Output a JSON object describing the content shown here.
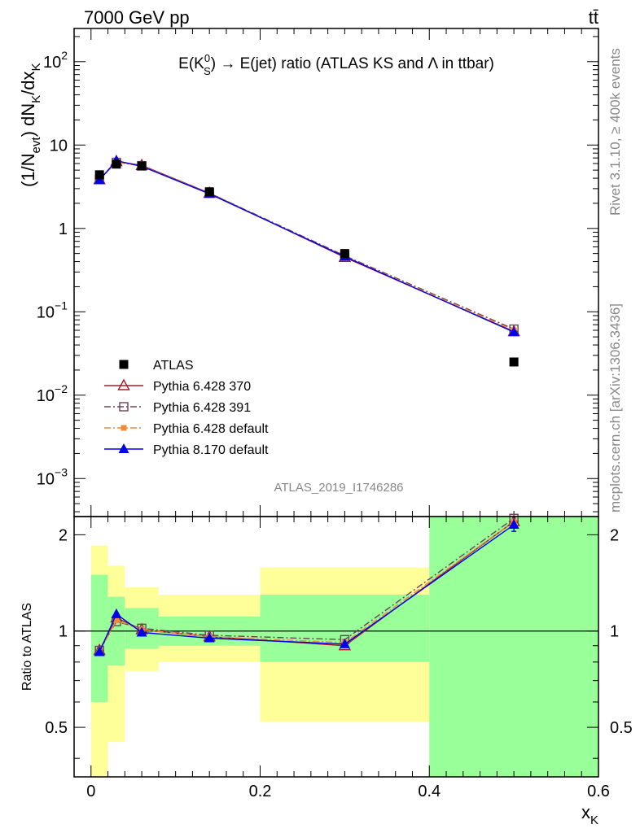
{
  "header": {
    "energy_label": "7000 GeV pp",
    "process_label": "tt̄",
    "side_rivet": "Rivet 3.1.10, ≥ 400k events",
    "side_mcplots": "mcplots.cern.ch [arXiv:1306.3436]",
    "analysis_id": "ATLAS_2019_I1746286"
  },
  "colors": {
    "atlas": "#000000",
    "p370": "#a41b24",
    "p391": "#6b4356",
    "p6def": "#f08a3c",
    "p8def": "#0000ee",
    "band_inner": "#99ff99",
    "band_outer": "#ffff99"
  },
  "chart_data": [
    {
      "type": "scatter",
      "panel": "main",
      "title_parts": {
        "main": "E(K",
        "sup": "0",
        "sub": "S",
        "rest": ") → E(jet) ratio (ATLAS KS and Λ in ttbar)"
      },
      "ylabel": "(1/N_evt) dN_K/dx_K",
      "ylabel_parts": {
        "a": "(1/N",
        "a_sub": "evt",
        "b": ") dN",
        "b_sub": "K",
        "c": "/dx",
        "c_sub": "K"
      },
      "yscale": "log",
      "xlim": [
        -0.02,
        0.6
      ],
      "ylim": [
        0.00035,
        250
      ],
      "y_ticks": [
        {
          "v": 0.001,
          "base": "10",
          "exp": "−3"
        },
        {
          "v": 0.01,
          "base": "10",
          "exp": "−2"
        },
        {
          "v": 0.1,
          "base": "10",
          "exp": "−1"
        },
        {
          "v": 1,
          "text": "1"
        },
        {
          "v": 10,
          "text": "10"
        },
        {
          "v": 100,
          "base": "10",
          "exp": "2"
        }
      ],
      "legend_position": "lower-left",
      "x": [
        0.01,
        0.03,
        0.06,
        0.14,
        0.3,
        0.5
      ],
      "series": [
        {
          "name": "ATLAS",
          "key": "atlas",
          "marker": "square-filled",
          "y": [
            4.4,
            5.9,
            5.6,
            2.75,
            0.5,
            0.025
          ]
        },
        {
          "name": "Pythia 6.428 370",
          "key": "p370",
          "marker": "triangle-open",
          "line": "solid",
          "y": [
            3.85,
            6.35,
            5.7,
            2.65,
            0.45,
            0.058
          ]
        },
        {
          "name": "Pythia 6.428 391",
          "key": "p391",
          "marker": "square-open",
          "line": "dashdot",
          "y": [
            3.85,
            6.2,
            5.65,
            2.65,
            0.47,
            0.062
          ]
        },
        {
          "name": "Pythia 6.428 default",
          "key": "p6def",
          "marker": "square-small",
          "line": "dashdot",
          "y": [
            3.8,
            6.25,
            5.6,
            2.6,
            0.46,
            0.06
          ]
        },
        {
          "name": "Pythia 8.170 default",
          "key": "p8def",
          "marker": "triangle-filled",
          "line": "solid",
          "y": [
            3.8,
            6.5,
            5.55,
            2.6,
            0.46,
            0.057
          ]
        }
      ]
    },
    {
      "type": "line",
      "panel": "ratio",
      "ylabel": "Ratio to ATLAS",
      "xlabel_parts": {
        "main": "x",
        "sub": "K"
      },
      "xlim": [
        -0.02,
        0.6
      ],
      "ylim": [
        0.35,
        2.28
      ],
      "y_ticks": [
        0.5,
        1,
        2
      ],
      "x_ticks": [
        0,
        0.2,
        0.4,
        0.6
      ],
      "x_tick_labels": [
        "0",
        "0.2",
        "0.4",
        "0.6"
      ],
      "reference_line": 1,
      "bands": [
        {
          "x0": 0.0,
          "x1": 0.02,
          "inner": [
            0.6,
            1.5
          ],
          "outer": [
            0.35,
            1.85
          ]
        },
        {
          "x0": 0.02,
          "x1": 0.04,
          "inner": [
            0.78,
            1.28
          ],
          "outer": [
            0.45,
            1.6
          ]
        },
        {
          "x0": 0.04,
          "x1": 0.08,
          "inner": [
            0.88,
            1.18
          ],
          "outer": [
            0.75,
            1.37
          ]
        },
        {
          "x0": 0.08,
          "x1": 0.2,
          "inner": [
            0.9,
            1.11
          ],
          "outer": [
            0.8,
            1.3
          ]
        },
        {
          "x0": 0.2,
          "x1": 0.4,
          "inner": [
            0.8,
            1.3
          ],
          "outer": [
            0.52,
            1.58
          ]
        },
        {
          "x0": 0.4,
          "x1": 0.6,
          "inner": [
            0.35,
            2.28
          ],
          "outer": [
            0.35,
            2.28
          ]
        }
      ],
      "x": [
        0.01,
        0.03,
        0.06,
        0.14,
        0.3,
        0.5
      ],
      "series": [
        {
          "name": "Pythia 6.428 370",
          "key": "p370",
          "marker": "triangle-open",
          "line": "solid",
          "y": [
            0.87,
            1.1,
            1.01,
            0.96,
            0.9,
            2.2
          ]
        },
        {
          "name": "Pythia 6.428 391",
          "key": "p391",
          "marker": "square-open",
          "line": "dashdot",
          "y": [
            0.87,
            1.07,
            1.02,
            0.97,
            0.94,
            2.25
          ]
        },
        {
          "name": "Pythia 6.428 default",
          "key": "p6def",
          "marker": "square-small",
          "line": "dashdot",
          "y": [
            0.86,
            1.08,
            1.01,
            0.96,
            0.92,
            2.2
          ]
        },
        {
          "name": "Pythia 8.170 default",
          "key": "p8def",
          "marker": "triangle-filled",
          "line": "solid",
          "y": [
            0.86,
            1.13,
            0.99,
            0.95,
            0.91,
            2.15
          ]
        }
      ],
      "error_bar": {
        "series": "p8def",
        "index": 5,
        "low": 2.05,
        "high": 2.25
      }
    }
  ]
}
